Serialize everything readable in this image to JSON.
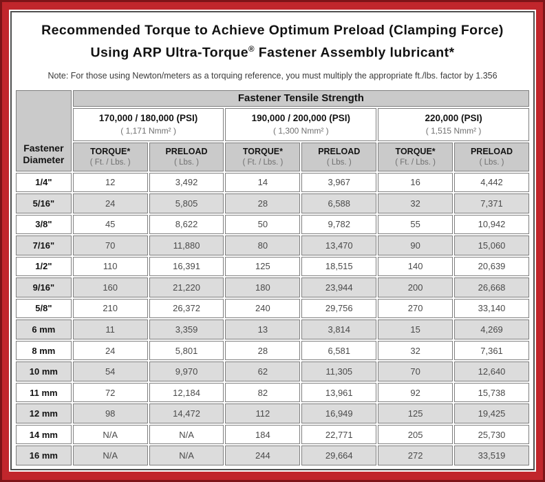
{
  "header": {
    "title_line1": "Recommended Torque to Achieve Optimum Preload (Clamping Force)",
    "title_line2_prefix": "Using ARP Ultra-Torque",
    "title_line2_reg": "®",
    "title_line2_suffix": " Fastener Assembly lubricant*",
    "note": "Note: For those using Newton/meters as a torquing reference, you must multiply the appropriate ft./lbs. factor by 1.356"
  },
  "colors": {
    "frame_red": "#c1262c",
    "frame_dark_red": "#7d1418",
    "header_gray": "#cacaca",
    "stripe_gray": "#dcdcdc",
    "cell_border": "#7e7e7e"
  },
  "table": {
    "diameter_header": "Fastener Diameter",
    "tensile_header": "Fastener Tensile Strength",
    "strength_groups": [
      {
        "psi": "170,000 / 180,000 (PSI)",
        "nmm": "( 1,171 Nmm² )"
      },
      {
        "psi": "190,000 / 200,000 (PSI)",
        "nmm": "( 1,300 Nmm² )"
      },
      {
        "psi": "220,000 (PSI)",
        "nmm": "( 1,515 Nmm² )"
      }
    ],
    "columns": [
      {
        "label": "TORQUE*",
        "sub": "( Ft. / Lbs. )"
      },
      {
        "label": "PRELOAD",
        "sub": "( Lbs. )"
      },
      {
        "label": "TORQUE*",
        "sub": "( Ft. / Lbs. )"
      },
      {
        "label": "PRELOAD",
        "sub": "( Lbs. )"
      },
      {
        "label": "TORQUE*",
        "sub": "( Ft. / Lbs. )"
      },
      {
        "label": "PRELOAD",
        "sub": "( Lbs. )"
      }
    ],
    "rows": [
      {
        "diameter": "1/4\"",
        "values": [
          "12",
          "3,492",
          "14",
          "3,967",
          "16",
          "4,442"
        ]
      },
      {
        "diameter": "5/16\"",
        "values": [
          "24",
          "5,805",
          "28",
          "6,588",
          "32",
          "7,371"
        ]
      },
      {
        "diameter": "3/8\"",
        "values": [
          "45",
          "8,622",
          "50",
          "9,782",
          "55",
          "10,942"
        ]
      },
      {
        "diameter": "7/16\"",
        "values": [
          "70",
          "11,880",
          "80",
          "13,470",
          "90",
          "15,060"
        ]
      },
      {
        "diameter": "1/2\"",
        "values": [
          "110",
          "16,391",
          "125",
          "18,515",
          "140",
          "20,639"
        ]
      },
      {
        "diameter": "9/16\"",
        "values": [
          "160",
          "21,220",
          "180",
          "23,944",
          "200",
          "26,668"
        ]
      },
      {
        "diameter": "5/8\"",
        "values": [
          "210",
          "26,372",
          "240",
          "29,756",
          "270",
          "33,140"
        ]
      },
      {
        "diameter": "6 mm",
        "values": [
          "11",
          "3,359",
          "13",
          "3,814",
          "15",
          "4,269"
        ]
      },
      {
        "diameter": "8 mm",
        "values": [
          "24",
          "5,801",
          "28",
          "6,581",
          "32",
          "7,361"
        ]
      },
      {
        "diameter": "10 mm",
        "values": [
          "54",
          "9,970",
          "62",
          "11,305",
          "70",
          "12,640"
        ]
      },
      {
        "diameter": "11 mm",
        "values": [
          "72",
          "12,184",
          "82",
          "13,961",
          "92",
          "15,738"
        ]
      },
      {
        "diameter": "12 mm",
        "values": [
          "98",
          "14,472",
          "112",
          "16,949",
          "125",
          "19,425"
        ]
      },
      {
        "diameter": "14 mm",
        "values": [
          "N/A",
          "N/A",
          "184",
          "22,771",
          "205",
          "25,730"
        ]
      },
      {
        "diameter": "16 mm",
        "values": [
          "N/A",
          "N/A",
          "244",
          "29,664",
          "272",
          "33,519"
        ]
      }
    ]
  }
}
